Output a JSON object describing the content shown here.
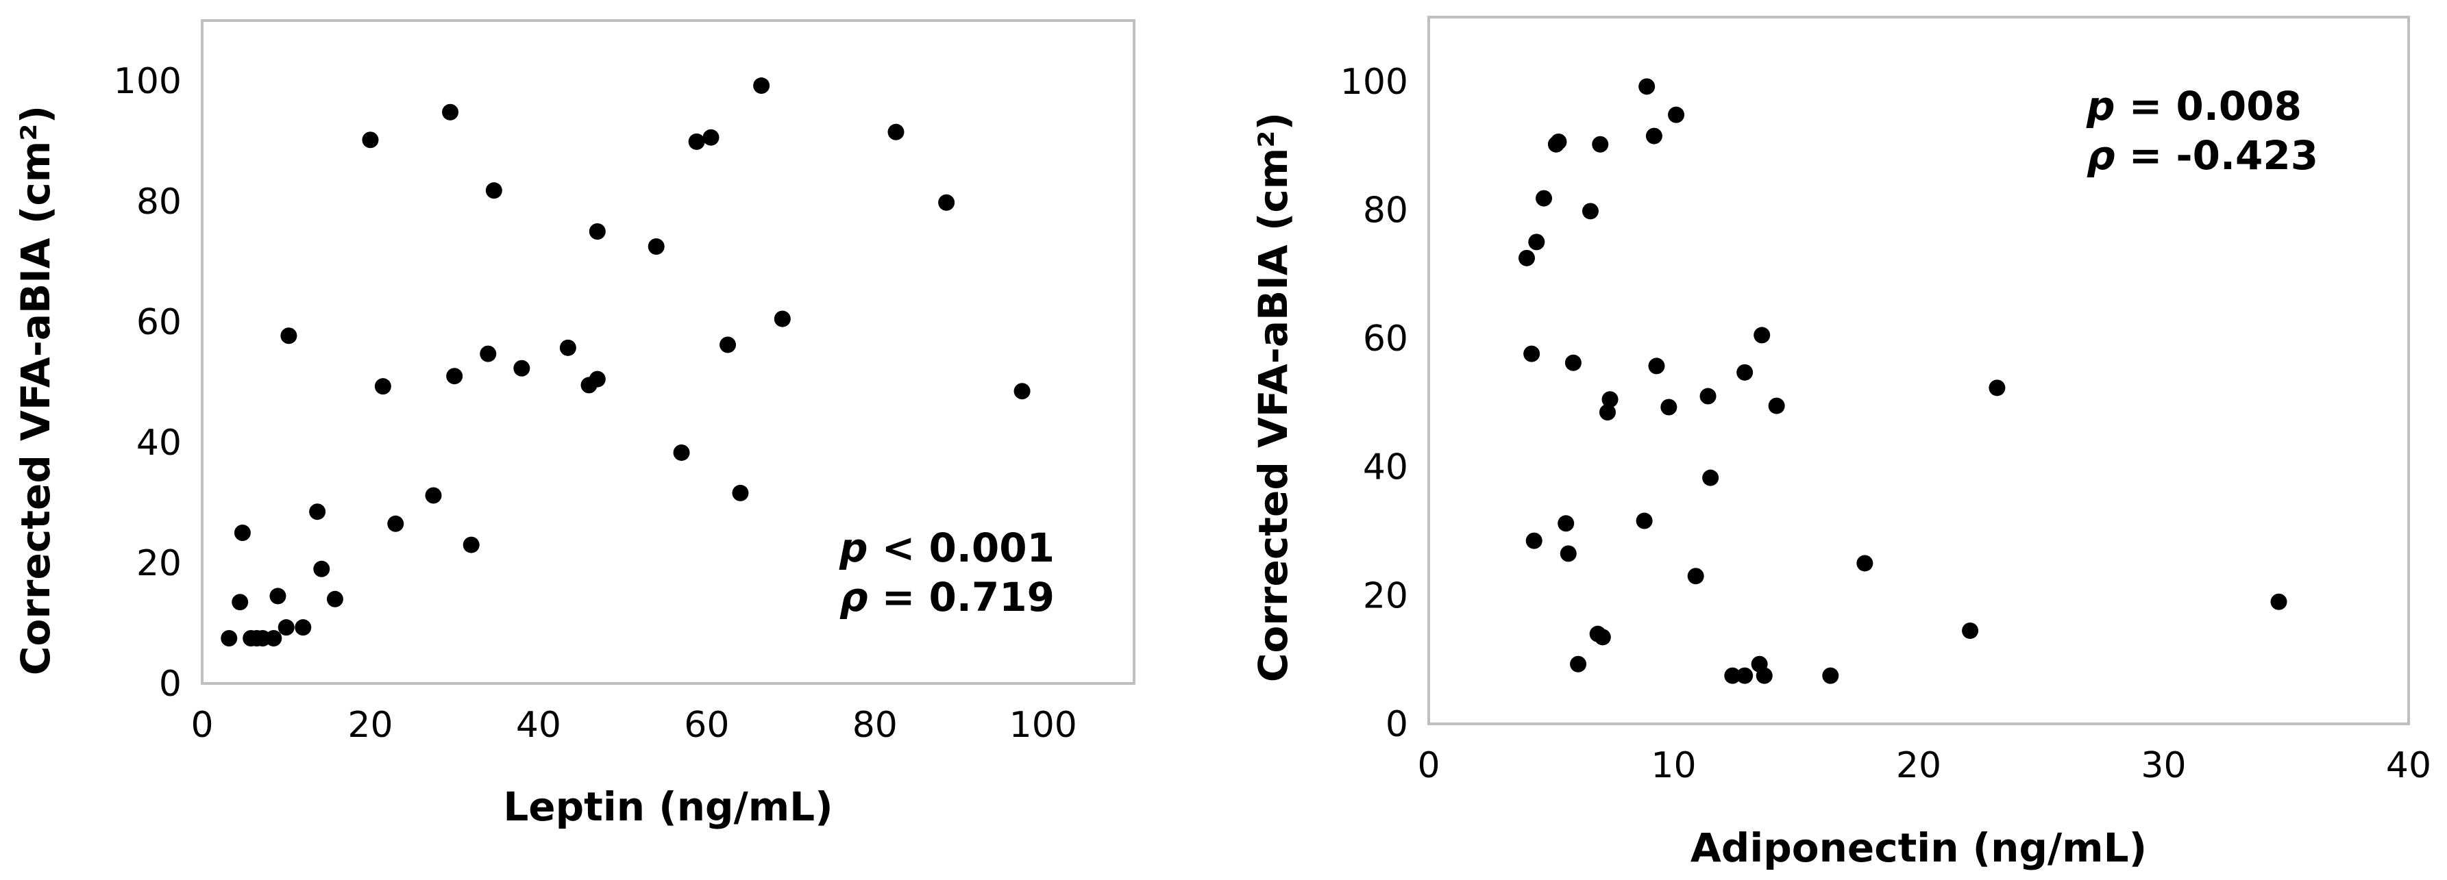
{
  "chart_data": [
    {
      "type": "scatter",
      "xlabel": "Leptin (ng/mL)",
      "ylabel": "Corrected VFA-aBIA (cm²)",
      "xlim": [
        0,
        110
      ],
      "ylim": [
        0,
        110
      ],
      "xticks": [
        0,
        20,
        40,
        60,
        80,
        100
      ],
      "yticks": [
        0,
        20,
        40,
        60,
        80,
        100
      ],
      "grid": false,
      "annotation": {
        "p_symbol": "p",
        "p_text": " < 0.001",
        "rho_symbol": "ρ",
        "rho_text": " = 0.719"
      },
      "points": [
        {
          "x": 3.2,
          "y": 7.5
        },
        {
          "x": 4.5,
          "y": 13.5
        },
        {
          "x": 4.8,
          "y": 25
        },
        {
          "x": 5.8,
          "y": 7.5
        },
        {
          "x": 6.5,
          "y": 7.5
        },
        {
          "x": 7.2,
          "y": 7.5
        },
        {
          "x": 8.5,
          "y": 7.5
        },
        {
          "x": 9,
          "y": 14.5
        },
        {
          "x": 10,
          "y": 9.3
        },
        {
          "x": 10.3,
          "y": 57.7
        },
        {
          "x": 12,
          "y": 9.3
        },
        {
          "x": 13.7,
          "y": 28.5
        },
        {
          "x": 14.2,
          "y": 19
        },
        {
          "x": 15.8,
          "y": 14
        },
        {
          "x": 20,
          "y": 90.2
        },
        {
          "x": 21.5,
          "y": 49.3
        },
        {
          "x": 23,
          "y": 26.5
        },
        {
          "x": 27.5,
          "y": 31.2
        },
        {
          "x": 29.5,
          "y": 94.8
        },
        {
          "x": 30,
          "y": 51
        },
        {
          "x": 32,
          "y": 23
        },
        {
          "x": 34,
          "y": 54.7
        },
        {
          "x": 34.7,
          "y": 81.8
        },
        {
          "x": 38,
          "y": 52.3
        },
        {
          "x": 43.5,
          "y": 55.7
        },
        {
          "x": 46,
          "y": 49.5
        },
        {
          "x": 47,
          "y": 50.5
        },
        {
          "x": 47,
          "y": 75
        },
        {
          "x": 54,
          "y": 72.5
        },
        {
          "x": 57,
          "y": 38.3
        },
        {
          "x": 58.8,
          "y": 89.9
        },
        {
          "x": 60.5,
          "y": 90.6
        },
        {
          "x": 62.5,
          "y": 56.2
        },
        {
          "x": 64,
          "y": 31.6
        },
        {
          "x": 66.5,
          "y": 99.2
        },
        {
          "x": 69,
          "y": 60.5
        },
        {
          "x": 82.5,
          "y": 91.5
        },
        {
          "x": 88.5,
          "y": 79.8
        },
        {
          "x": 97.5,
          "y": 48.5
        }
      ]
    },
    {
      "type": "scatter",
      "xlabel": "Adiponectin (ng/mL)",
      "ylabel": "Corrected VFA-aBIA (cm²)",
      "xlim": [
        0,
        40
      ],
      "ylim": [
        0,
        110
      ],
      "xticks": [
        0,
        10,
        20,
        30,
        40
      ],
      "yticks": [
        0,
        20,
        40,
        60,
        80,
        100
      ],
      "grid": false,
      "annotation": {
        "p_symbol": "p",
        "p_text": " = 0.008",
        "rho_symbol": "ρ",
        "rho_text": " = -0.423"
      },
      "points": [
        {
          "x": 4.0,
          "y": 72.5
        },
        {
          "x": 4.2,
          "y": 57.6
        },
        {
          "x": 4.3,
          "y": 28.5
        },
        {
          "x": 4.4,
          "y": 75
        },
        {
          "x": 4.7,
          "y": 81.8
        },
        {
          "x": 5.2,
          "y": 90.2
        },
        {
          "x": 5.3,
          "y": 90.6
        },
        {
          "x": 5.6,
          "y": 31.2
        },
        {
          "x": 5.7,
          "y": 26.5
        },
        {
          "x": 5.9,
          "y": 56.2
        },
        {
          "x": 6.1,
          "y": 9.3
        },
        {
          "x": 6.6,
          "y": 79.8
        },
        {
          "x": 6.9,
          "y": 14
        },
        {
          "x": 7.0,
          "y": 90.2
        },
        {
          "x": 7.1,
          "y": 13.5
        },
        {
          "x": 7.3,
          "y": 48.5
        },
        {
          "x": 7.4,
          "y": 50.5
        },
        {
          "x": 8.8,
          "y": 31.6
        },
        {
          "x": 8.9,
          "y": 99.2
        },
        {
          "x": 9.2,
          "y": 91.5
        },
        {
          "x": 9.3,
          "y": 55.7
        },
        {
          "x": 9.8,
          "y": 49.3
        },
        {
          "x": 10.1,
          "y": 94.8
        },
        {
          "x": 10.9,
          "y": 23
        },
        {
          "x": 11.4,
          "y": 51
        },
        {
          "x": 11.5,
          "y": 38.3
        },
        {
          "x": 12.4,
          "y": 7.5
        },
        {
          "x": 12.9,
          "y": 54.7
        },
        {
          "x": 12.9,
          "y": 7.5
        },
        {
          "x": 13.5,
          "y": 9.3
        },
        {
          "x": 13.6,
          "y": 60.5
        },
        {
          "x": 13.7,
          "y": 7.5
        },
        {
          "x": 14.2,
          "y": 49.5
        },
        {
          "x": 16.4,
          "y": 7.5
        },
        {
          "x": 17.8,
          "y": 25
        },
        {
          "x": 22.1,
          "y": 14.5
        },
        {
          "x": 23.2,
          "y": 52.3
        },
        {
          "x": 34.7,
          "y": 19
        }
      ]
    }
  ]
}
